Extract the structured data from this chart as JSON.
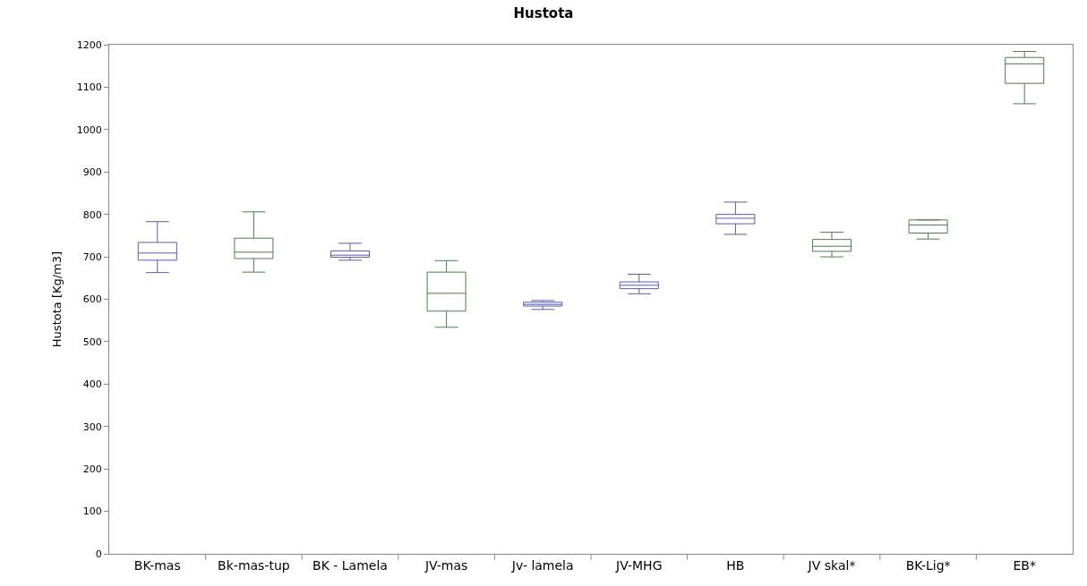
{
  "chart_data": {
    "type": "box",
    "title": "Hustota",
    "ylabel": "Hustota [Kg/m3]",
    "categories": [
      "BK-mas",
      "Bk-mas-tup",
      "BK - Lamela",
      "JV-mas",
      "Jv- lamela",
      "JV-MHG",
      "HB",
      "JV skal*",
      "BK-Lig*",
      "EB*"
    ],
    "boxes": [
      {
        "low": 663,
        "q1": 692,
        "median": 709,
        "q3": 734,
        "high": 783
      },
      {
        "low": 664,
        "q1": 696,
        "median": 711,
        "q3": 744,
        "high": 806
      },
      {
        "low": 692,
        "q1": 699,
        "median": 704,
        "q3": 714,
        "high": 732
      },
      {
        "low": 534,
        "q1": 572,
        "median": 614,
        "q3": 664,
        "high": 691
      },
      {
        "low": 576,
        "q1": 584,
        "median": 588,
        "q3": 593,
        "high": 597
      },
      {
        "low": 613,
        "q1": 625,
        "median": 633,
        "q3": 641,
        "high": 659
      },
      {
        "low": 753,
        "q1": 778,
        "median": 791,
        "q3": 800,
        "high": 829
      },
      {
        "low": 700,
        "q1": 713,
        "median": 725,
        "q3": 741,
        "high": 758
      },
      {
        "low": 742,
        "q1": 756,
        "median": 775,
        "q3": 787,
        "high": 787
      },
      {
        "low": 1061,
        "q1": 1109,
        "median": 1155,
        "q3": 1170,
        "high": 1184
      }
    ],
    "colors": [
      "#5a5ab4",
      "#4f7a4f",
      "#5a5ab4",
      "#4f7a4f",
      "#5a5ab4",
      "#5a5ab4",
      "#5a5ab4",
      "#4f7a4f",
      "#4f7a4f",
      "#4f7a4f"
    ],
    "ylim": [
      0,
      1200
    ],
    "yticks": [
      0,
      100,
      200,
      300,
      400,
      500,
      600,
      700,
      800,
      900,
      1000,
      1100,
      1200
    ],
    "grid": false
  }
}
